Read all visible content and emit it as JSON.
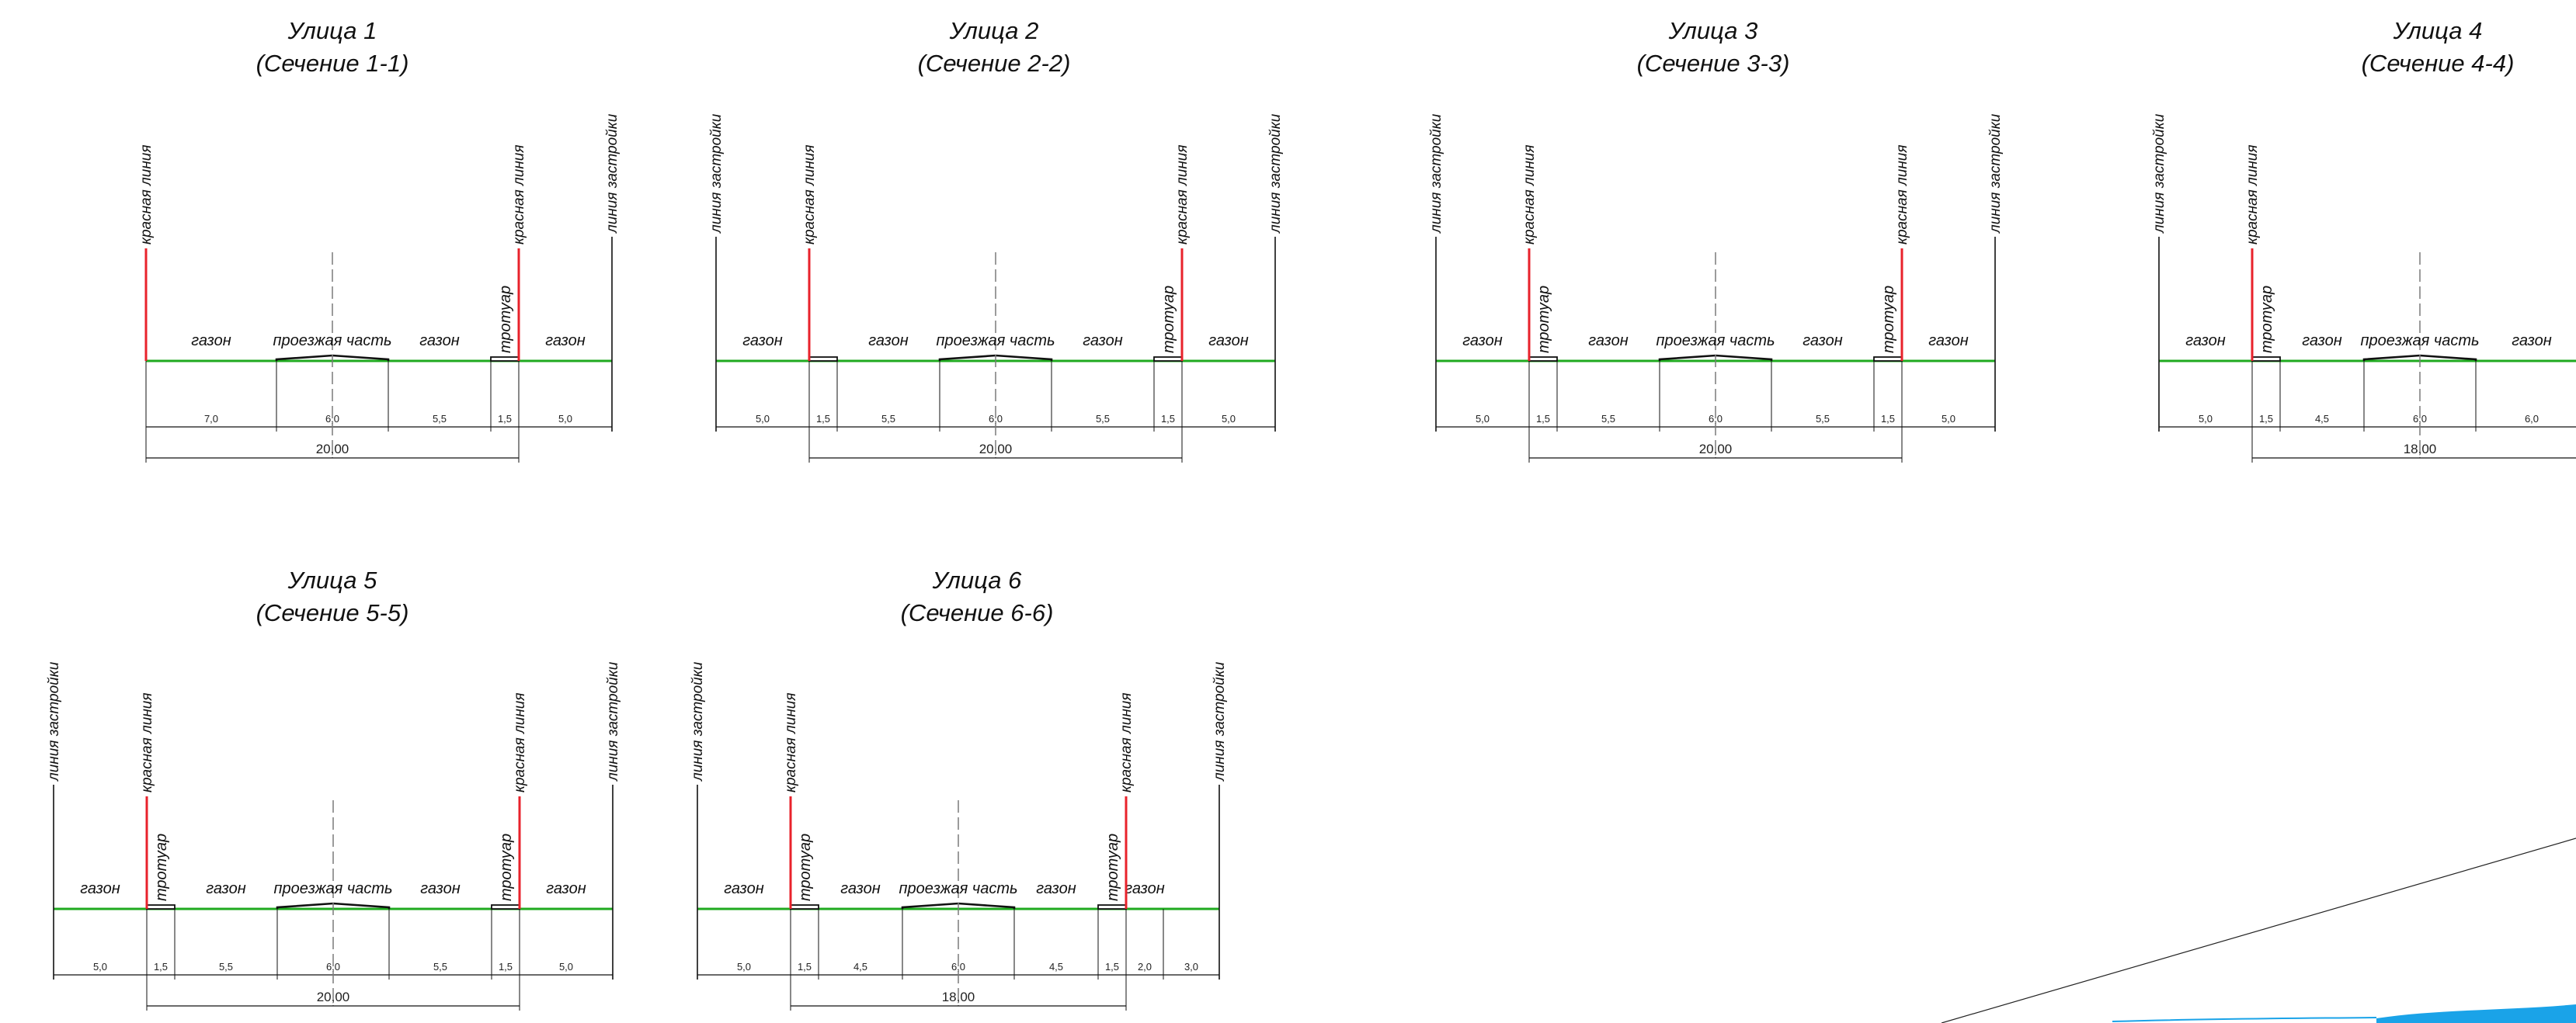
{
  "sections": [
    {
      "title": "Улица 1",
      "subtitle": "(Сечение 1-1)",
      "elements": [
        {
          "type": "red",
          "label": "красная линия"
        },
        {
          "type": "zone",
          "label": "газон",
          "width": "7,0"
        },
        {
          "type": "road",
          "label": "проезжая часть",
          "width": "6,0"
        },
        {
          "type": "zone",
          "label": "газон",
          "width": "5,5"
        },
        {
          "type": "walk",
          "label": "тротуар",
          "width": "1,5"
        },
        {
          "type": "red",
          "label": "красная линия"
        },
        {
          "type": "zone",
          "label": "газон",
          "width": "5,0"
        },
        {
          "type": "build",
          "label": "линия застройки"
        }
      ],
      "total": "20,00"
    },
    {
      "title": "Улица 2",
      "subtitle": "(Сечение 2-2)",
      "elements": [
        {
          "type": "build",
          "label": "линия застройки"
        },
        {
          "type": "zone",
          "label": "газон",
          "width": "5,0"
        },
        {
          "type": "red",
          "label": "красная линия"
        },
        {
          "type": "walk",
          "label": "",
          "width": "1,5"
        },
        {
          "type": "zone",
          "label": "газон",
          "width": "5,5"
        },
        {
          "type": "road",
          "label": "проезжая часть",
          "width": "6,0"
        },
        {
          "type": "zone",
          "label": "газон",
          "width": "5,5"
        },
        {
          "type": "walk",
          "label": "тротуар",
          "width": "1,5"
        },
        {
          "type": "red",
          "label": "красная линия"
        },
        {
          "type": "zone",
          "label": "газон",
          "width": "5,0"
        },
        {
          "type": "build",
          "label": "линия застройки"
        }
      ],
      "total": "20,00"
    },
    {
      "title": "Улица 3",
      "subtitle": "(Сечение 3-3)",
      "elements": [
        {
          "type": "build",
          "label": "линия застройки"
        },
        {
          "type": "zone",
          "label": "газон",
          "width": "5,0"
        },
        {
          "type": "red",
          "label": "красная линия"
        },
        {
          "type": "walk",
          "label": "тротуар",
          "width": "1,5"
        },
        {
          "type": "zone",
          "label": "газон",
          "width": "5,5"
        },
        {
          "type": "road",
          "label": "проезжая часть",
          "width": "6,0"
        },
        {
          "type": "zone",
          "label": "газон",
          "width": "5,5"
        },
        {
          "type": "walk",
          "label": "тротуар",
          "width": "1,5"
        },
        {
          "type": "red",
          "label": "красная линия"
        },
        {
          "type": "zone",
          "label": "газон",
          "width": "5,0"
        },
        {
          "type": "build",
          "label": "линия застройки"
        }
      ],
      "total": "20,00"
    },
    {
      "title": "Улица 4",
      "subtitle": "(Сечение 4-4)",
      "elements": [
        {
          "type": "build",
          "label": "линия застройки"
        },
        {
          "type": "zone",
          "label": "газон",
          "width": "5,0"
        },
        {
          "type": "red",
          "label": "красная линия"
        },
        {
          "type": "walk",
          "label": "тротуар",
          "width": "1,5"
        },
        {
          "type": "zone",
          "label": "газон",
          "width": "4,5"
        },
        {
          "type": "road",
          "label": "проезжая часть",
          "width": "6,0"
        },
        {
          "type": "zone",
          "label": "газон",
          "width": "6,0"
        }
      ],
      "total": "18,00"
    },
    {
      "title": "Улица 5",
      "subtitle": "(Сечение 5-5)",
      "elements": [
        {
          "type": "build",
          "label": "линия застройки"
        },
        {
          "type": "zone",
          "label": "газон",
          "width": "5,0"
        },
        {
          "type": "red",
          "label": "красная линия"
        },
        {
          "type": "walk",
          "label": "тротуар",
          "width": "1,5"
        },
        {
          "type": "zone",
          "label": "газон",
          "width": "5,5"
        },
        {
          "type": "road",
          "label": "проезжая часть",
          "width": "6,0"
        },
        {
          "type": "zone",
          "label": "газон",
          "width": "5,5"
        },
        {
          "type": "walk",
          "label": "тротуар",
          "width": "1,5"
        },
        {
          "type": "red",
          "label": "красная линия"
        },
        {
          "type": "zone",
          "label": "газон",
          "width": "5,0"
        },
        {
          "type": "build",
          "label": "линия застройки"
        }
      ],
      "total": "20,00"
    },
    {
      "title": "Улица 6",
      "subtitle": "(Сечение 6-6)",
      "elements": [
        {
          "type": "build",
          "label": "линия застройки"
        },
        {
          "type": "zone",
          "label": "газон",
          "width": "5,0"
        },
        {
          "type": "red",
          "label": "красная линия"
        },
        {
          "type": "walk",
          "label": "тротуар",
          "width": "1,5"
        },
        {
          "type": "zone",
          "label": "газон",
          "width": "4,5"
        },
        {
          "type": "road",
          "label": "проезжая часть",
          "width": "6,0"
        },
        {
          "type": "zone",
          "label": "газон",
          "width": "4,5"
        },
        {
          "type": "walk",
          "label": "тротуар",
          "width": "1,5"
        },
        {
          "type": "red",
          "label": "красная линия"
        },
        {
          "type": "zone",
          "label": "газон",
          "width": "2,0"
        },
        {
          "type": "zone",
          "label": "",
          "width": "3,0"
        },
        {
          "type": "build",
          "label": "линия застройки"
        }
      ],
      "total": "18,00"
    }
  ],
  "colors": {
    "red_line": "#e8222b",
    "ground_line": "#1faa1f",
    "ink": "#111111",
    "axis": "#7a7a7a",
    "water": "#1aa3e8"
  }
}
